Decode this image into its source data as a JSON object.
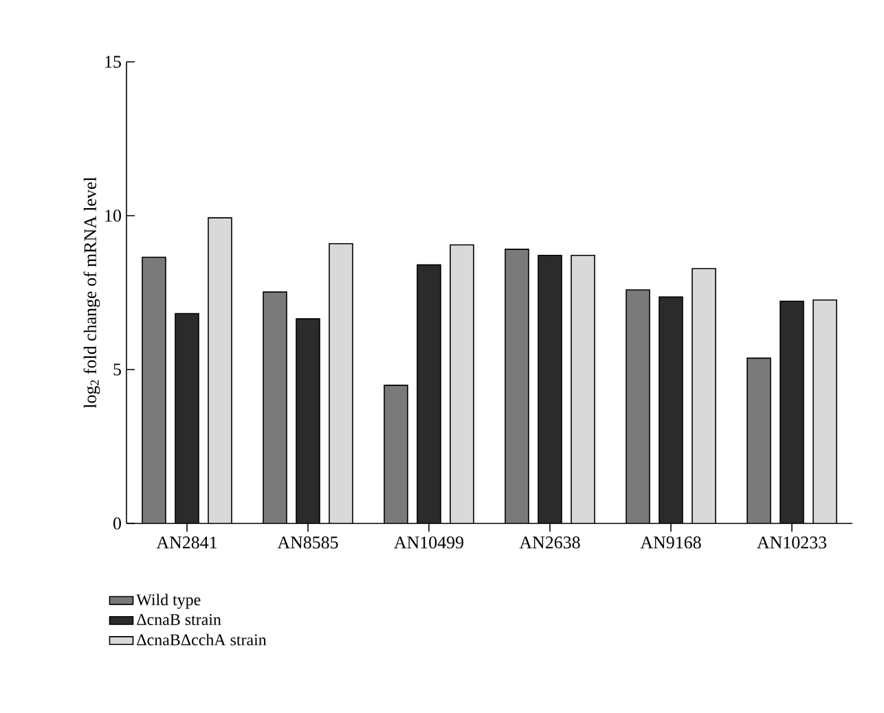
{
  "chart_data": {
    "type": "bar",
    "ylabel": "log$_{2}$ fold change of mRNA level",
    "categories": [
      "AN2841",
      "AN8585",
      "AN10499",
      "AN2638",
      "AN9168",
      "AN10233"
    ],
    "series": [
      {
        "name": "Wild type",
        "color": "#7a7a7a",
        "values": [
          8.65,
          7.52,
          4.49,
          8.91,
          7.59,
          5.37
        ]
      },
      {
        "name": "ΔcnaB strain",
        "color": "#2b2b2b",
        "values": [
          6.82,
          6.65,
          8.4,
          8.71,
          7.36,
          7.22
        ]
      },
      {
        "name": "ΔcnaBΔcchA strain",
        "color": "#d9d9d9",
        "values": [
          9.93,
          9.09,
          9.05,
          8.71,
          8.28,
          7.26
        ]
      }
    ],
    "ylim": [
      0,
      15
    ],
    "yticks": [
      0,
      5,
      10,
      15
    ],
    "grid": false,
    "legend": "bottom left"
  }
}
